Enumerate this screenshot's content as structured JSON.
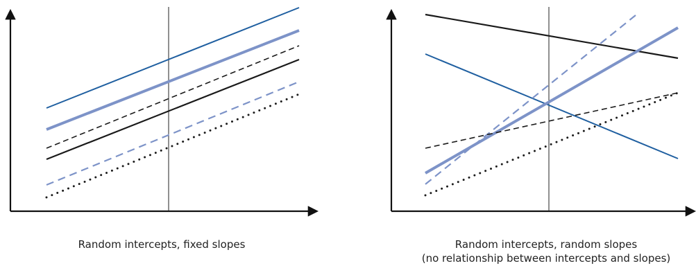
{
  "colors": {
    "axis": "#111111",
    "black": "#1a1a1a",
    "dark_blue": "#1f5fa0",
    "light_blue": "#7d93c8",
    "background": "#ffffff"
  },
  "left_panel": {
    "caption": "Random intercepts, fixed slopes",
    "lines": [
      {
        "name": "solid-dark-blue-line",
        "style": "solid",
        "color": "dark_blue"
      },
      {
        "name": "thick-light-blue-line",
        "style": "thick",
        "color": "light_blue"
      },
      {
        "name": "dashed-black-line",
        "style": "dashed",
        "color": "black"
      },
      {
        "name": "solid-black-line",
        "style": "solid",
        "color": "black"
      },
      {
        "name": "dashed-light-blue-line",
        "style": "dashed",
        "color": "light_blue"
      },
      {
        "name": "dotted-black-line",
        "style": "dotted",
        "color": "black"
      }
    ]
  },
  "right_panel": {
    "caption_line1": "Random intercepts, random slopes",
    "caption_line2": "(no relationship between intercepts and slopes)",
    "lines": [
      {
        "name": "solid-black-line",
        "style": "solid",
        "color": "black"
      },
      {
        "name": "solid-dark-blue-line",
        "style": "solid",
        "color": "dark_blue"
      },
      {
        "name": "dashed-light-blue-line",
        "style": "dashed",
        "color": "light_blue"
      },
      {
        "name": "thick-light-blue-line",
        "style": "thick",
        "color": "light_blue"
      },
      {
        "name": "dashed-black-line",
        "style": "dashed",
        "color": "black"
      },
      {
        "name": "dotted-black-line",
        "style": "dotted",
        "color": "black"
      }
    ]
  }
}
